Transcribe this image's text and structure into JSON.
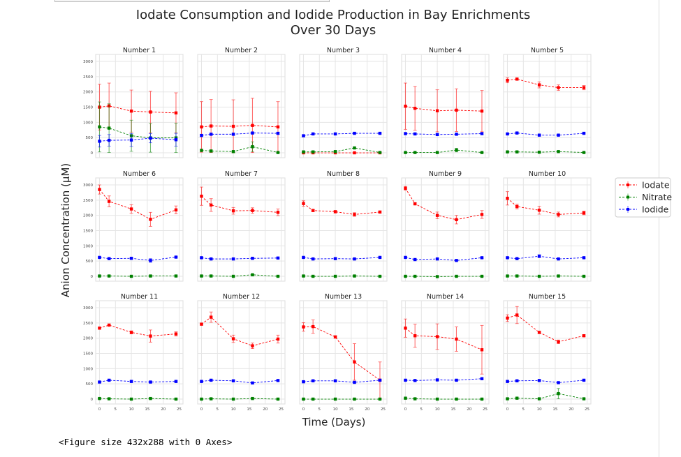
{
  "chart_data": {
    "type": "line",
    "title": "Iodate Consumption and Iodide Production in Bay Enrichments\nOver 30 Days",
    "xlabel": "Time (Days)",
    "ylabel": "Anion Concentration (µM)",
    "x": [
      0,
      3,
      10,
      16,
      24
    ],
    "xlim": [
      -1.2,
      26.2
    ],
    "ylim": [
      -160,
      3230
    ],
    "xticks": [
      0,
      5,
      10,
      15,
      20,
      25
    ],
    "yticks": [
      0,
      500,
      1000,
      1500,
      2000,
      2500,
      3000
    ],
    "grid": true,
    "error_bars": true,
    "legend_placement": "right",
    "series_styles": [
      {
        "name": "Iodate",
        "color": "#ff0000"
      },
      {
        "name": "Nitrate",
        "color": "#008000"
      },
      {
        "name": "Iodide",
        "color": "#0000ff"
      }
    ],
    "panels": [
      {
        "title": "Number 1",
        "series": [
          {
            "name": "Iodate",
            "values": [
              1500,
              1540,
              1370,
              1340,
              1310
            ],
            "err": [
              750,
              750,
              690,
              680,
              660
            ]
          },
          {
            "name": "Nitrate",
            "values": [
              850,
              810,
              560,
              490,
              490
            ],
            "err": [
              820,
              800,
              510,
              470,
              480
            ]
          },
          {
            "name": "Iodide",
            "values": [
              380,
              410,
              420,
              480,
              430
            ],
            "err": [
              190,
              190,
              210,
              150,
              210
            ]
          }
        ]
      },
      {
        "title": "Number 2",
        "series": [
          {
            "name": "Iodate",
            "values": [
              850,
              880,
              870,
              900,
              850
            ],
            "err": [
              830,
              870,
              870,
              890,
              830
            ]
          },
          {
            "name": "Nitrate",
            "values": [
              80,
              60,
              40,
              200,
              10
            ],
            "err": [
              30,
              30,
              20,
              160,
              10
            ]
          },
          {
            "name": "Iodide",
            "values": [
              570,
              610,
              610,
              650,
              640
            ],
            "err": [
              30,
              30,
              30,
              30,
              30
            ]
          }
        ]
      },
      {
        "title": "Number 3",
        "series": [
          {
            "name": "Iodate",
            "values": [
              0,
              0,
              0,
              0,
              0
            ],
            "err": [
              0,
              0,
              0,
              0,
              0
            ]
          },
          {
            "name": "Nitrate",
            "values": [
              30,
              30,
              40,
              160,
              10
            ],
            "err": [
              20,
              20,
              20,
              20,
              10
            ]
          },
          {
            "name": "Iodide",
            "values": [
              560,
              620,
              620,
              640,
              640
            ],
            "err": [
              20,
              20,
              20,
              20,
              20
            ]
          }
        ]
      },
      {
        "title": "Number 4",
        "series": [
          {
            "name": "Iodate",
            "values": [
              1530,
              1460,
              1380,
              1400,
              1370
            ],
            "err": [
              760,
              720,
              690,
              700,
              680
            ]
          },
          {
            "name": "Nitrate",
            "values": [
              10,
              10,
              10,
              90,
              10
            ],
            "err": [
              10,
              10,
              10,
              60,
              10
            ]
          },
          {
            "name": "Iodide",
            "values": [
              630,
              620,
              600,
              610,
              630
            ],
            "err": [
              30,
              30,
              30,
              30,
              30
            ]
          }
        ]
      },
      {
        "title": "Number 5",
        "series": [
          {
            "name": "Iodate",
            "values": [
              2380,
              2420,
              2230,
              2140,
              2140
            ],
            "err": [
              80,
              30,
              100,
              90,
              70
            ]
          },
          {
            "name": "Nitrate",
            "values": [
              30,
              30,
              20,
              40,
              10
            ],
            "err": [
              10,
              10,
              10,
              10,
              10
            ]
          },
          {
            "name": "Iodide",
            "values": [
              620,
              650,
              580,
              580,
              640
            ],
            "err": [
              20,
              20,
              20,
              20,
              20
            ]
          }
        ]
      },
      {
        "title": "Number 6",
        "series": [
          {
            "name": "Iodate",
            "values": [
              2850,
              2460,
              2210,
              1870,
              2180
            ],
            "err": [
              150,
              180,
              140,
              230,
              130
            ]
          },
          {
            "name": "Nitrate",
            "values": [
              10,
              10,
              0,
              10,
              10
            ],
            "err": [
              10,
              10,
              10,
              10,
              10
            ]
          },
          {
            "name": "Iodide",
            "values": [
              620,
              580,
              590,
              520,
              630
            ],
            "err": [
              20,
              20,
              20,
              60,
              20
            ]
          }
        ]
      },
      {
        "title": "Number 7",
        "series": [
          {
            "name": "Iodate",
            "values": [
              2630,
              2340,
              2150,
              2160,
              2100
            ],
            "err": [
              300,
              210,
              110,
              90,
              110
            ]
          },
          {
            "name": "Nitrate",
            "values": [
              10,
              10,
              0,
              50,
              0
            ],
            "err": [
              10,
              10,
              10,
              10,
              10
            ]
          },
          {
            "name": "Iodide",
            "values": [
              610,
              570,
              570,
              590,
              600
            ],
            "err": [
              20,
              20,
              20,
              20,
              20
            ]
          }
        ]
      },
      {
        "title": "Number 8",
        "series": [
          {
            "name": "Iodate",
            "values": [
              2390,
              2160,
              2120,
              2030,
              2110
            ],
            "err": [
              90,
              30,
              40,
              60,
              30
            ]
          },
          {
            "name": "Nitrate",
            "values": [
              10,
              0,
              0,
              10,
              0
            ],
            "err": [
              10,
              10,
              10,
              10,
              10
            ]
          },
          {
            "name": "Iodide",
            "values": [
              620,
              570,
              580,
              570,
              620
            ],
            "err": [
              20,
              20,
              20,
              20,
              20
            ]
          }
        ]
      },
      {
        "title": "Number 9",
        "series": [
          {
            "name": "Iodate",
            "values": [
              2890,
              2380,
              2000,
              1860,
              2030
            ],
            "err": [
              60,
              30,
              110,
              140,
              130
            ]
          },
          {
            "name": "Nitrate",
            "values": [
              0,
              0,
              -10,
              0,
              0
            ],
            "err": [
              10,
              10,
              10,
              10,
              10
            ]
          },
          {
            "name": "Iodide",
            "values": [
              620,
              550,
              570,
              520,
              610
            ],
            "err": [
              20,
              20,
              20,
              20,
              20
            ]
          }
        ]
      },
      {
        "title": "Number 10",
        "series": [
          {
            "name": "Iodate",
            "values": [
              2560,
              2290,
              2170,
              2030,
              2080
            ],
            "err": [
              220,
              80,
              130,
              80,
              60
            ]
          },
          {
            "name": "Nitrate",
            "values": [
              10,
              10,
              0,
              10,
              0
            ],
            "err": [
              10,
              10,
              10,
              10,
              10
            ]
          },
          {
            "name": "Iodide",
            "values": [
              610,
              580,
              660,
              570,
              610
            ],
            "err": [
              20,
              20,
              50,
              20,
              20
            ]
          }
        ]
      },
      {
        "title": "Number 11",
        "series": [
          {
            "name": "Iodate",
            "values": [
              2330,
              2430,
              2190,
              2070,
              2140
            ],
            "err": [
              30,
              30,
              50,
              200,
              70
            ]
          },
          {
            "name": "Nitrate",
            "values": [
              20,
              10,
              0,
              20,
              0
            ],
            "err": [
              10,
              10,
              10,
              10,
              10
            ]
          },
          {
            "name": "Iodide",
            "values": [
              560,
              620,
              580,
              560,
              580
            ],
            "err": [
              20,
              20,
              20,
              20,
              20
            ]
          }
        ]
      },
      {
        "title": "Number 12",
        "series": [
          {
            "name": "Iodate",
            "values": [
              2460,
              2690,
              1980,
              1750,
              1970
            ],
            "err": [
              30,
              170,
              120,
              90,
              130
            ]
          },
          {
            "name": "Nitrate",
            "values": [
              0,
              10,
              0,
              20,
              0
            ],
            "err": [
              10,
              10,
              10,
              10,
              10
            ]
          },
          {
            "name": "Iodide",
            "values": [
              580,
              620,
              600,
              530,
              610
            ],
            "err": [
              20,
              20,
              20,
              20,
              20
            ]
          }
        ]
      },
      {
        "title": "Number 13",
        "series": [
          {
            "name": "Iodate",
            "values": [
              2370,
              2380,
              2040,
              1220,
              620
            ],
            "err": [
              140,
              220,
              40,
              600,
              600
            ]
          },
          {
            "name": "Nitrate",
            "values": [
              0,
              0,
              0,
              0,
              0
            ],
            "err": [
              10,
              10,
              10,
              10,
              10
            ]
          },
          {
            "name": "Iodide",
            "values": [
              570,
              600,
              600,
              550,
              620
            ],
            "err": [
              20,
              20,
              20,
              20,
              20
            ]
          }
        ]
      },
      {
        "title": "Number 14",
        "series": [
          {
            "name": "Iodate",
            "values": [
              2330,
              2080,
              2050,
              1970,
              1620
            ],
            "err": [
              300,
              380,
              420,
              400,
              800
            ]
          },
          {
            "name": "Nitrate",
            "values": [
              30,
              10,
              0,
              0,
              0
            ],
            "err": [
              10,
              10,
              10,
              10,
              10
            ]
          },
          {
            "name": "Iodide",
            "values": [
              620,
              610,
              630,
              620,
              670
            ],
            "err": [
              20,
              20,
              20,
              20,
              20
            ]
          }
        ]
      },
      {
        "title": "Number 15",
        "series": [
          {
            "name": "Iodate",
            "values": [
              2660,
              2760,
              2190,
              1880,
              2080
            ],
            "err": [
              110,
              280,
              40,
              60,
              30
            ]
          },
          {
            "name": "Nitrate",
            "values": [
              10,
              30,
              10,
              180,
              10
            ],
            "err": [
              10,
              10,
              10,
              170,
              10
            ]
          },
          {
            "name": "Iodide",
            "values": [
              580,
              600,
              610,
              540,
              620
            ],
            "err": [
              20,
              20,
              20,
              20,
              20
            ]
          }
        ]
      }
    ]
  },
  "output": {
    "figure_caption": "<Figure size 432x288 with 0 Axes>"
  }
}
